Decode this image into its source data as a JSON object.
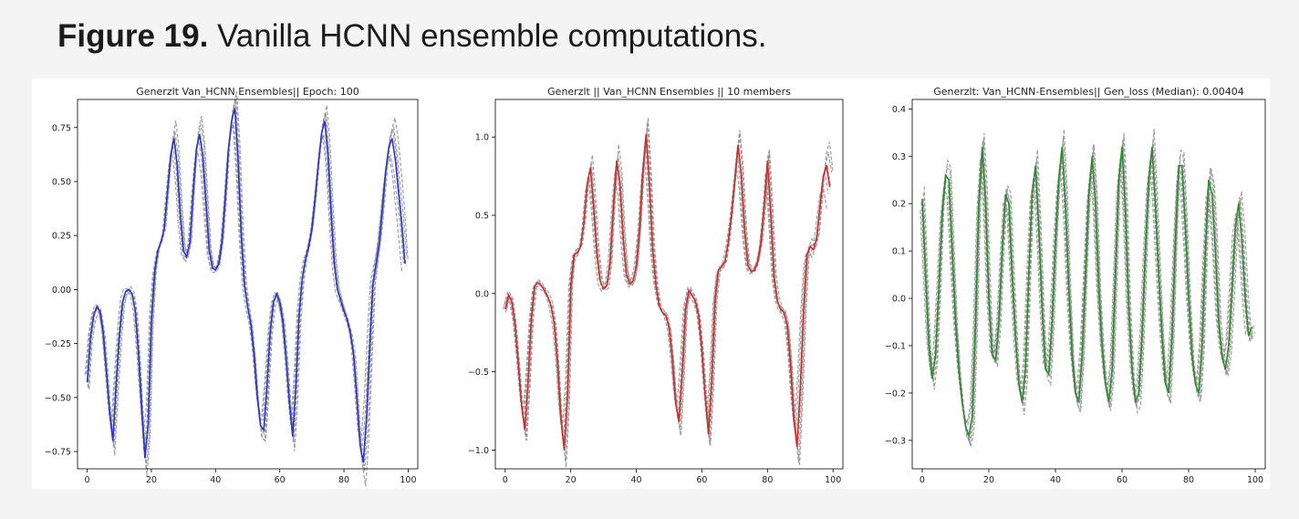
{
  "caption": {
    "label": "Figure 19.",
    "text": " Vanilla HCNN ensemble computations."
  },
  "chart_data": [
    {
      "type": "line",
      "title": "Generzlt Van_HCNN Ensembles|| Epoch: 100",
      "xlim": [
        -3,
        103
      ],
      "ylim": [
        -0.83,
        0.88
      ],
      "xticks": [
        0,
        20,
        40,
        60,
        80,
        100
      ],
      "yticks": [
        -0.75,
        -0.5,
        -0.25,
        0.0,
        0.25,
        0.5,
        0.75
      ],
      "ytick_labels": [
        "−0.75",
        "−0.50",
        "−0.25",
        "0.00",
        "0.25",
        "0.50",
        "0.75"
      ],
      "grid": false,
      "series": [
        {
          "color": "#2b35c8",
          "style": "solid",
          "x": [
            0,
            1,
            2,
            3,
            4,
            5,
            6,
            7,
            8,
            9,
            10,
            11,
            12,
            13,
            14,
            15,
            16,
            17,
            18,
            19,
            20,
            21,
            22,
            23,
            24,
            25,
            26,
            27,
            28,
            29,
            30,
            31,
            32,
            33,
            34,
            35,
            36,
            37,
            38,
            39,
            40,
            41,
            42,
            43,
            44,
            45,
            46,
            47,
            48,
            49,
            50,
            51,
            52,
            53,
            54,
            55,
            56,
            57,
            58,
            59,
            60,
            61,
            62,
            63,
            64,
            65,
            66,
            67,
            68,
            69,
            70,
            71,
            72,
            73,
            74,
            75,
            76,
            77,
            78,
            79,
            80,
            81,
            82,
            83,
            84,
            85,
            86,
            87,
            88,
            89,
            90,
            91,
            92,
            93,
            94,
            95,
            96,
            97,
            98,
            99
          ],
          "y": [
            -0.43,
            -0.22,
            -0.12,
            -0.08,
            -0.1,
            -0.2,
            -0.38,
            -0.57,
            -0.7,
            -0.45,
            -0.22,
            -0.06,
            -0.01,
            0.0,
            -0.02,
            -0.1,
            -0.3,
            -0.55,
            -0.78,
            -0.62,
            -0.15,
            0.08,
            0.18,
            0.22,
            0.28,
            0.45,
            0.62,
            0.7,
            0.58,
            0.35,
            0.18,
            0.15,
            0.22,
            0.45,
            0.65,
            0.72,
            0.62,
            0.4,
            0.18,
            0.1,
            0.09,
            0.12,
            0.22,
            0.42,
            0.65,
            0.78,
            0.84,
            0.6,
            0.25,
            0.02,
            -0.08,
            -0.16,
            -0.3,
            -0.5,
            -0.63,
            -0.65,
            -0.45,
            -0.2,
            -0.06,
            -0.02,
            -0.06,
            -0.15,
            -0.32,
            -0.52,
            -0.68,
            -0.45,
            -0.12,
            0.05,
            0.14,
            0.2,
            0.28,
            0.42,
            0.58,
            0.72,
            0.78,
            0.62,
            0.35,
            0.12,
            0.0,
            -0.05,
            -0.1,
            -0.14,
            -0.2,
            -0.3,
            -0.5,
            -0.72,
            -0.8,
            -0.6,
            -0.28,
            0.02,
            0.12,
            0.22,
            0.38,
            0.55,
            0.66,
            0.7,
            0.6,
            0.45,
            0.3,
            0.12
          ]
        }
      ]
    },
    {
      "type": "line",
      "title": "Generzlt || Van_HCNN Ensembles || 10 members",
      "xlim": [
        -3,
        103
      ],
      "ylim": [
        -1.12,
        1.24
      ],
      "xticks": [
        0,
        20,
        40,
        60,
        80,
        100
      ],
      "yticks": [
        -1.0,
        -0.5,
        0.0,
        0.5,
        1.0
      ],
      "ytick_labels": [
        "−1.0",
        "−0.5",
        "0.0",
        "0.5",
        "1.0"
      ],
      "grid": false,
      "series": [
        {
          "color": "#cc2e2e",
          "style": "solid",
          "x": [
            0,
            1,
            2,
            3,
            4,
            5,
            6,
            7,
            8,
            9,
            10,
            11,
            12,
            13,
            14,
            15,
            16,
            17,
            18,
            19,
            20,
            21,
            22,
            23,
            24,
            25,
            26,
            27,
            28,
            29,
            30,
            31,
            32,
            33,
            34,
            35,
            36,
            37,
            38,
            39,
            40,
            41,
            42,
            43,
            44,
            45,
            46,
            47,
            48,
            49,
            50,
            51,
            52,
            53,
            54,
            55,
            56,
            57,
            58,
            59,
            60,
            61,
            62,
            63,
            64,
            65,
            66,
            67,
            68,
            69,
            70,
            71,
            72,
            73,
            74,
            75,
            76,
            77,
            78,
            79,
            80,
            81,
            82,
            83,
            84,
            85,
            86,
            87,
            88,
            89,
            90,
            91,
            92,
            93,
            94,
            95,
            96,
            97,
            98,
            99
          ],
          "y": [
            -0.1,
            -0.01,
            -0.05,
            -0.2,
            -0.45,
            -0.72,
            -0.87,
            -0.55,
            -0.15,
            0.05,
            0.07,
            0.05,
            0.02,
            -0.02,
            -0.08,
            -0.2,
            -0.45,
            -0.8,
            -1.0,
            -0.65,
            0.05,
            0.25,
            0.26,
            0.3,
            0.45,
            0.7,
            0.8,
            0.55,
            0.25,
            0.08,
            0.03,
            0.05,
            0.2,
            0.55,
            0.85,
            0.7,
            0.35,
            0.12,
            0.06,
            0.08,
            0.18,
            0.42,
            0.78,
            1.02,
            0.7,
            0.28,
            0.05,
            -0.08,
            -0.12,
            -0.14,
            -0.22,
            -0.42,
            -0.7,
            -0.82,
            -0.5,
            -0.1,
            0.02,
            -0.01,
            -0.05,
            -0.14,
            -0.35,
            -0.65,
            -0.9,
            -0.55,
            -0.05,
            0.15,
            0.17,
            0.2,
            0.32,
            0.5,
            0.72,
            0.95,
            0.75,
            0.4,
            0.18,
            0.14,
            0.15,
            0.2,
            0.32,
            0.55,
            0.85,
            0.5,
            0.1,
            -0.05,
            -0.1,
            -0.12,
            -0.2,
            -0.45,
            -0.8,
            -0.98,
            -0.6,
            -0.1,
            0.25,
            0.3,
            0.28,
            0.35,
            0.55,
            0.75,
            0.82,
            0.68
          ]
        }
      ]
    },
    {
      "type": "line",
      "title": "Generzlt: Van_HCNN-Ensembles|| Gen_loss (Median): 0.00404",
      "xlim": [
        -3,
        103
      ],
      "ylim": [
        -0.36,
        0.42
      ],
      "xticks": [
        0,
        20,
        40,
        60,
        80,
        100
      ],
      "yticks": [
        -0.3,
        -0.2,
        -0.1,
        0.0,
        0.1,
        0.2,
        0.3,
        0.4
      ],
      "ytick_labels": [
        "−0.3",
        "−0.2",
        "−0.1",
        "0.0",
        "0.1",
        "0.2",
        "0.3",
        "0.4"
      ],
      "grid": false,
      "series": [
        {
          "color": "#2f8a2f",
          "style": "solid",
          "x": [
            0,
            1,
            2,
            3,
            4,
            5,
            6,
            7,
            8,
            9,
            10,
            11,
            12,
            13,
            14,
            15,
            16,
            17,
            18,
            19,
            20,
            21,
            22,
            23,
            24,
            25,
            26,
            27,
            28,
            29,
            30,
            31,
            32,
            33,
            34,
            35,
            36,
            37,
            38,
            39,
            40,
            41,
            42,
            43,
            44,
            45,
            46,
            47,
            48,
            49,
            50,
            51,
            52,
            53,
            54,
            55,
            56,
            57,
            58,
            59,
            60,
            61,
            62,
            63,
            64,
            65,
            66,
            67,
            68,
            69,
            70,
            71,
            72,
            73,
            74,
            75,
            76,
            77,
            78,
            79,
            80,
            81,
            82,
            83,
            84,
            85,
            86,
            87,
            88,
            89,
            90,
            91,
            92,
            93,
            94,
            95,
            96,
            97,
            98,
            99
          ],
          "y": [
            0.21,
            0.05,
            -0.1,
            -0.17,
            -0.12,
            0.02,
            0.18,
            0.26,
            0.25,
            0.1,
            -0.05,
            -0.15,
            -0.22,
            -0.27,
            -0.29,
            -0.25,
            -0.05,
            0.2,
            0.32,
            0.2,
            0.0,
            -0.12,
            -0.13,
            -0.05,
            0.1,
            0.22,
            0.2,
            0.05,
            -0.08,
            -0.18,
            -0.22,
            -0.15,
            0.05,
            0.22,
            0.28,
            0.15,
            -0.02,
            -0.15,
            -0.16,
            -0.05,
            0.12,
            0.25,
            0.32,
            0.2,
            0.02,
            -0.12,
            -0.2,
            -0.22,
            -0.12,
            0.05,
            0.22,
            0.3,
            0.2,
            0.02,
            -0.1,
            -0.18,
            -0.22,
            -0.15,
            0.05,
            0.25,
            0.32,
            0.18,
            -0.02,
            -0.15,
            -0.22,
            -0.2,
            -0.08,
            0.1,
            0.25,
            0.32,
            0.2,
            0.05,
            -0.08,
            -0.18,
            -0.2,
            -0.08,
            0.12,
            0.28,
            0.28,
            0.15,
            0.0,
            -0.12,
            -0.18,
            -0.2,
            -0.1,
            0.1,
            0.25,
            0.22,
            0.1,
            -0.05,
            -0.12,
            -0.15,
            -0.1,
            0.02,
            0.15,
            0.2,
            0.12,
            0.0,
            -0.08,
            -0.06
          ]
        }
      ]
    }
  ]
}
